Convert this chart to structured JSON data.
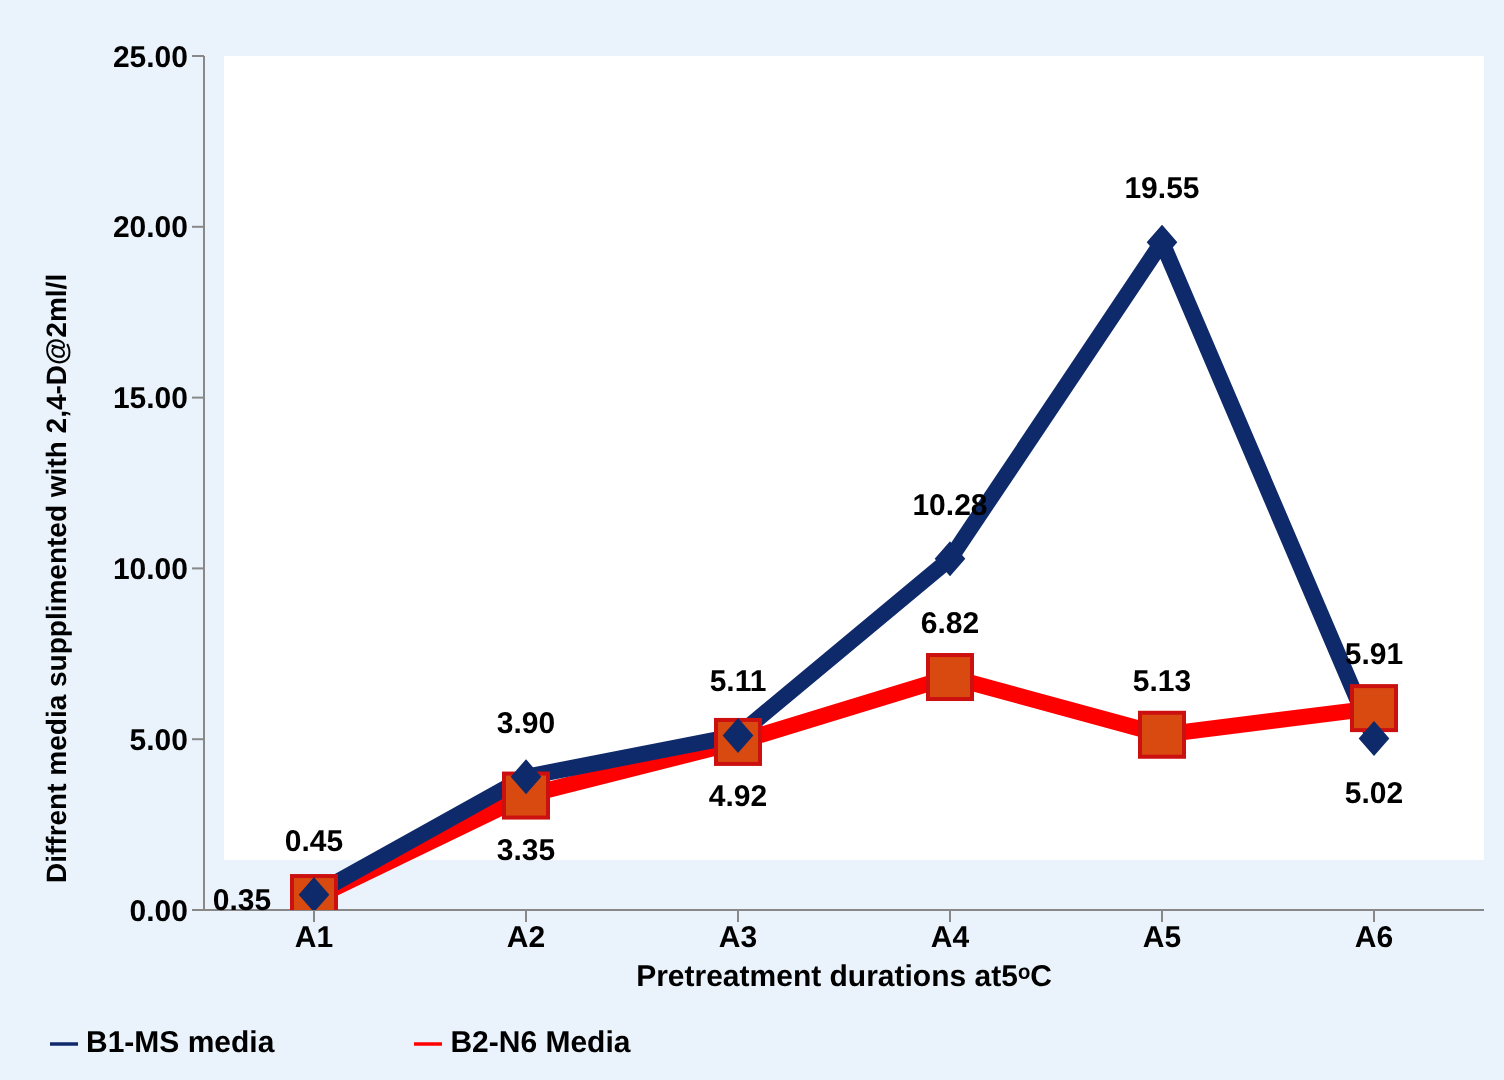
{
  "chart_data": {
    "type": "line",
    "xlabel": "Pretreatment durations at5ᵒC",
    "ylabel": "Diffrent media supplimented with 2,4-D@2ml/l",
    "categories": [
      "A1",
      "A2",
      "A3",
      "A4",
      "A5",
      "A6"
    ],
    "series": [
      {
        "name": "B1-MS media",
        "color": "#0f2a6b",
        "marker": "diamond",
        "values": [
          0.45,
          3.9,
          5.11,
          10.28,
          19.55,
          5.02
        ],
        "value_labels": [
          "0.45",
          "3.90",
          "5.11",
          "10.28",
          "19.55",
          "5.02"
        ]
      },
      {
        "name": "B2-N6 Media",
        "color": "#ff0000",
        "marker": "square",
        "values": [
          0.35,
          3.35,
          4.92,
          6.82,
          5.13,
          5.91
        ],
        "value_labels": [
          "0.35",
          "3.35",
          "4.92",
          "6.82",
          "5.13",
          "5.91"
        ]
      }
    ],
    "ylim": [
      0,
      25
    ],
    "yticks": [
      {
        "value": 0,
        "label": "0.00"
      },
      {
        "value": 5,
        "label": "5.00"
      },
      {
        "value": 10,
        "label": "10.00"
      },
      {
        "value": 15,
        "label": "15.00"
      },
      {
        "value": 20,
        "label": "20.00"
      },
      {
        "value": 25,
        "label": "25.00"
      }
    ],
    "grid": false,
    "legend": "bottom left"
  }
}
